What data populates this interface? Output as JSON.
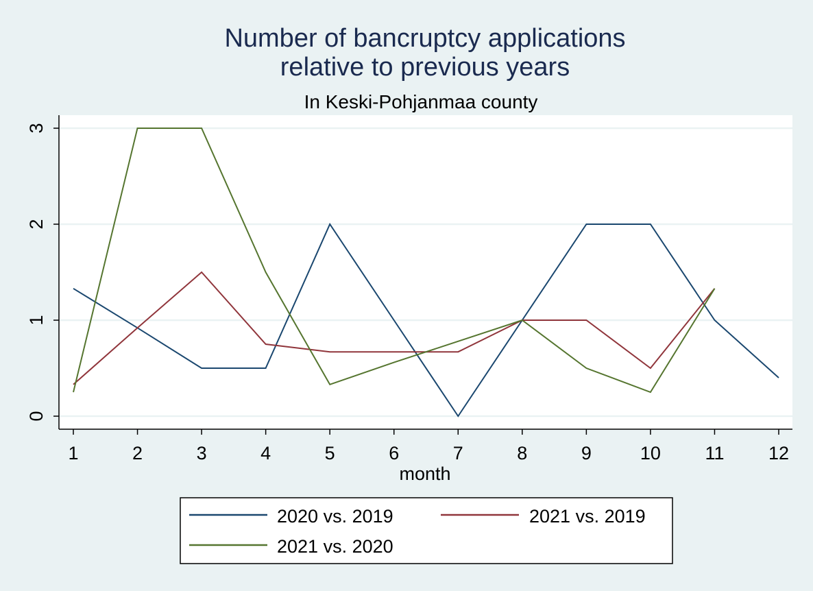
{
  "chart_data": {
    "type": "line",
    "title": [
      "Number of bancruptcy applications",
      "relative to previous years"
    ],
    "subtitle": "In Keski-Pohjanmaa county",
    "xlabel": "month",
    "ylabel": "",
    "x": [
      1,
      2,
      3,
      4,
      5,
      6,
      7,
      8,
      9,
      10,
      11,
      12
    ],
    "xlim": [
      1,
      12
    ],
    "ylim": [
      0,
      3
    ],
    "yticks": [
      0,
      1,
      2,
      3
    ],
    "grid": true,
    "legend_position": "bottom",
    "series": [
      {
        "name": "2020 vs. 2019",
        "color": "#1a476f",
        "values": [
          1.33,
          0.92,
          0.5,
          0.5,
          2,
          1,
          0,
          1,
          2,
          2,
          1,
          0.4
        ]
      },
      {
        "name": "2021 vs. 2019",
        "color": "#90353b",
        "values": [
          0.33,
          0.92,
          1.5,
          0.75,
          0.67,
          0.67,
          0.67,
          1,
          1,
          0.5,
          1.33,
          null
        ]
      },
      {
        "name": "2021 vs. 2020",
        "color": "#55752f",
        "values": [
          0.25,
          3,
          3,
          1.5,
          0.33,
          0.56,
          0.78,
          1,
          0.5,
          0.25,
          1.33,
          null
        ]
      }
    ]
  }
}
